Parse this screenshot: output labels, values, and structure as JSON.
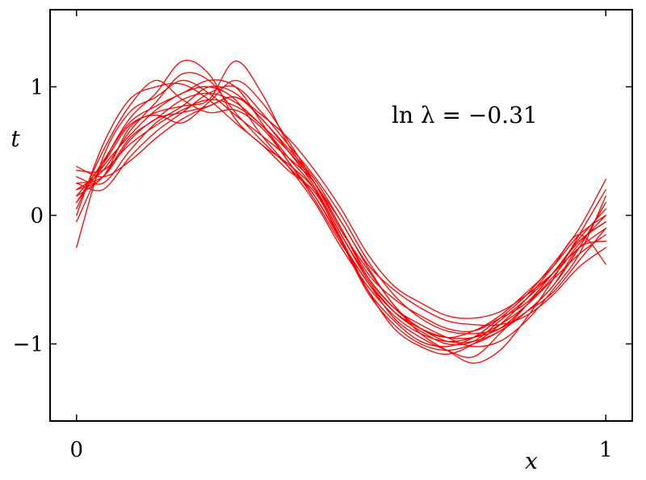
{
  "chart_data": {
    "type": "line",
    "title": "",
    "xlabel": "x",
    "ylabel": "t",
    "xlim": [
      -0.05,
      1.05
    ],
    "ylim": [
      -1.6,
      1.6
    ],
    "xticks": [
      0,
      1
    ],
    "xtick_labels": [
      "0",
      "1"
    ],
    "yticks": [
      -1,
      0,
      1
    ],
    "ytick_labels": [
      "−1",
      "0",
      "1"
    ],
    "annotation": "ln λ = −0.31",
    "line_color": "#ff0000",
    "grid": false,
    "legend": "none",
    "x": [
      0,
      0.05,
      0.1,
      0.15,
      0.2,
      0.25,
      0.3,
      0.35,
      0.4,
      0.45,
      0.5,
      0.55,
      0.6,
      0.65,
      0.7,
      0.75,
      0.8,
      0.85,
      0.9,
      0.95,
      1.0
    ],
    "series": [
      {
        "values": [
          0.1,
          0.38,
          0.62,
          0.82,
          0.95,
          1.0,
          0.9,
          0.62,
          0.38,
          0.1,
          -0.25,
          -0.55,
          -0.78,
          -0.92,
          -0.98,
          -0.95,
          -0.85,
          -0.7,
          -0.5,
          -0.3,
          -0.15
        ]
      },
      {
        "values": [
          0.2,
          0.3,
          0.68,
          0.8,
          0.85,
          0.9,
          1.2,
          0.95,
          0.55,
          0.25,
          -0.05,
          -0.4,
          -0.7,
          -0.88,
          -0.95,
          -0.9,
          -0.78,
          -0.6,
          -0.4,
          -0.15,
          0.0
        ]
      },
      {
        "values": [
          -0.05,
          0.4,
          0.75,
          0.95,
          1.2,
          1.1,
          0.75,
          0.55,
          0.4,
          0.2,
          -0.15,
          -0.5,
          -0.75,
          -0.9,
          -1.0,
          -0.98,
          -0.82,
          -0.65,
          -0.45,
          -0.2,
          -0.05
        ]
      },
      {
        "values": [
          0.35,
          0.35,
          0.55,
          0.7,
          0.82,
          0.9,
          0.85,
          0.7,
          0.45,
          0.2,
          -0.2,
          -0.6,
          -0.85,
          -1.0,
          -1.05,
          -1.0,
          -0.9,
          -0.75,
          -0.55,
          -0.25,
          0.1
        ]
      },
      {
        "values": [
          0.15,
          0.3,
          0.6,
          0.75,
          0.9,
          0.95,
          0.88,
          0.7,
          0.5,
          0.25,
          -0.1,
          -0.45,
          -0.65,
          -0.78,
          -0.88,
          -0.9,
          -0.8,
          -0.68,
          -0.45,
          -0.18,
          0.05
        ]
      },
      {
        "values": [
          0.25,
          0.2,
          0.45,
          0.65,
          0.8,
          0.95,
          1.0,
          0.8,
          0.55,
          0.3,
          0.0,
          -0.35,
          -0.62,
          -0.8,
          -0.9,
          -0.92,
          -0.88,
          -0.75,
          -0.6,
          -0.35,
          -0.1
        ]
      },
      {
        "values": [
          -0.25,
          0.45,
          0.8,
          0.92,
          1.05,
          0.95,
          0.78,
          0.62,
          0.45,
          0.25,
          -0.1,
          -0.48,
          -0.72,
          -0.85,
          -0.95,
          -1.02,
          -0.98,
          -0.82,
          -0.58,
          -0.3,
          0.15
        ]
      },
      {
        "values": [
          0.05,
          0.5,
          0.85,
          1.05,
          0.9,
          0.8,
          0.82,
          0.68,
          0.42,
          0.12,
          -0.22,
          -0.52,
          -0.8,
          -0.95,
          -1.05,
          -1.1,
          -0.92,
          -0.7,
          -0.45,
          -0.2,
          -0.05
        ]
      },
      {
        "values": [
          0.3,
          0.25,
          0.5,
          0.72,
          0.85,
          1.0,
          0.95,
          0.75,
          0.52,
          0.28,
          -0.05,
          -0.38,
          -0.58,
          -0.72,
          -0.82,
          -0.85,
          -0.85,
          -0.78,
          -0.62,
          -0.4,
          -0.25
        ]
      },
      {
        "values": [
          0.15,
          0.4,
          0.7,
          0.78,
          0.72,
          0.88,
          1.05,
          0.88,
          0.58,
          0.25,
          -0.12,
          -0.42,
          -0.7,
          -0.92,
          -1.05,
          -1.15,
          -1.05,
          -0.8,
          -0.5,
          -0.15,
          0.2
        ]
      },
      {
        "values": [
          0.0,
          0.55,
          0.9,
          1.0,
          1.02,
          0.9,
          0.72,
          0.55,
          0.35,
          0.18,
          -0.18,
          -0.58,
          -0.88,
          -1.02,
          -1.08,
          -1.0,
          -0.85,
          -0.65,
          -0.4,
          -0.15,
          -0.38
        ]
      },
      {
        "values": [
          0.38,
          0.3,
          0.42,
          0.6,
          0.75,
          0.85,
          0.92,
          0.78,
          0.6,
          0.35,
          0.05,
          -0.3,
          -0.55,
          -0.68,
          -0.78,
          -0.8,
          -0.75,
          -0.62,
          -0.45,
          -0.25,
          -0.1
        ]
      },
      {
        "values": [
          0.2,
          0.35,
          0.65,
          0.88,
          1.1,
          1.05,
          0.8,
          0.58,
          0.38,
          0.15,
          -0.2,
          -0.58,
          -0.82,
          -0.98,
          -1.02,
          -0.95,
          -0.8,
          -0.62,
          -0.38,
          -0.1,
          0.28
        ]
      },
      {
        "values": [
          0.1,
          0.42,
          0.72,
          0.85,
          0.95,
          1.05,
          1.0,
          0.72,
          0.42,
          0.15,
          -0.2,
          -0.52,
          -0.75,
          -0.88,
          -0.95,
          -0.95,
          -0.88,
          -0.7,
          -0.48,
          -0.22,
          0.0
        ]
      },
      {
        "values": [
          0.25,
          0.3,
          0.58,
          0.75,
          0.8,
          0.85,
          0.92,
          0.75,
          0.5,
          0.22,
          -0.15,
          -0.48,
          -0.72,
          -0.88,
          -0.98,
          -0.98,
          -0.9,
          -0.75,
          -0.55,
          -0.25,
          -0.2
        ]
      }
    ]
  }
}
